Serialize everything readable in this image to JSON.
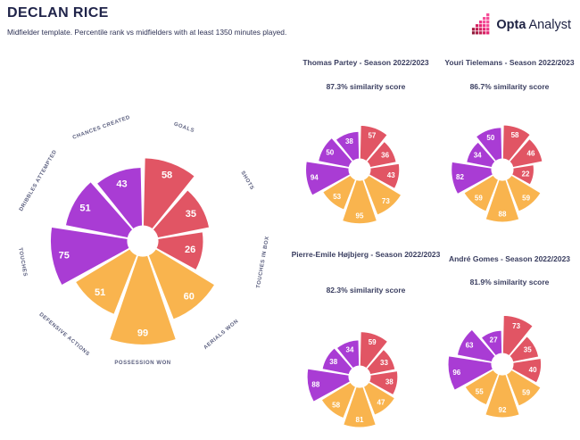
{
  "header": {
    "title": "DECLAN RICE",
    "subtitle": "Midfielder template. Percentile rank vs midfielders with at least 1350 minutes played."
  },
  "logo": {
    "bold": "Opta",
    "regular": "Analyst"
  },
  "colors": {
    "red": "#e15564",
    "orange": "#f9b44e",
    "purple": "#a93cd4",
    "navy": "#20244a",
    "category_label": "#5a5e7e",
    "value_label": "#ffffff",
    "logo_gradient": [
      "#8e1b3a",
      "#a81c44",
      "#c01e51",
      "#d52060",
      "#e52371",
      "#ef3184",
      "#f54b97"
    ]
  },
  "chart_data": {
    "type": "polar_bar",
    "scale": [
      0,
      100
    ],
    "unit": "percentile rank vs midfielders",
    "radius_encoding": "sqrt(value)",
    "legend_position": "none",
    "grid": false,
    "categories": [
      "GOALS",
      "SHOTS",
      "TOUCHES IN BOX",
      "AERIALS WON",
      "POSSESSION WON",
      "DEFENSIVE ACTIONS",
      "TOUCHES",
      "DRIBBLES ATTEMPTED",
      "CHANCES CREATED"
    ],
    "category_groups": [
      0,
      0,
      0,
      1,
      1,
      1,
      2,
      2,
      2
    ],
    "group_palette": [
      "#e15564",
      "#f9b44e",
      "#a93cd4"
    ],
    "charts": [
      {
        "name": "Declan Rice",
        "values": [
          58,
          35,
          26,
          60,
          99,
          51,
          75,
          51,
          43
        ]
      },
      {
        "title": "Thomas Partey - Season 2022/2023",
        "similarity": "87.3% similarity score",
        "values": [
          57,
          36,
          43,
          73,
          95,
          53,
          94,
          50,
          38
        ]
      },
      {
        "title": "Youri Tielemans - Season 2022/2023",
        "similarity": "86.7% similarity score",
        "values": [
          58,
          46,
          22,
          59,
          88,
          59,
          82,
          34,
          50
        ]
      },
      {
        "title": "Pierre-Emile Højbjerg - Season 2022/2023",
        "similarity": "82.3% similarity score",
        "values": [
          59,
          33,
          38,
          47,
          81,
          58,
          88,
          38,
          34
        ]
      },
      {
        "title": "André Gomes - Season 2022/2023",
        "similarity": "81.9% similarity score",
        "values": [
          73,
          35,
          40,
          59,
          92,
          55,
          96,
          63,
          27
        ]
      }
    ]
  }
}
